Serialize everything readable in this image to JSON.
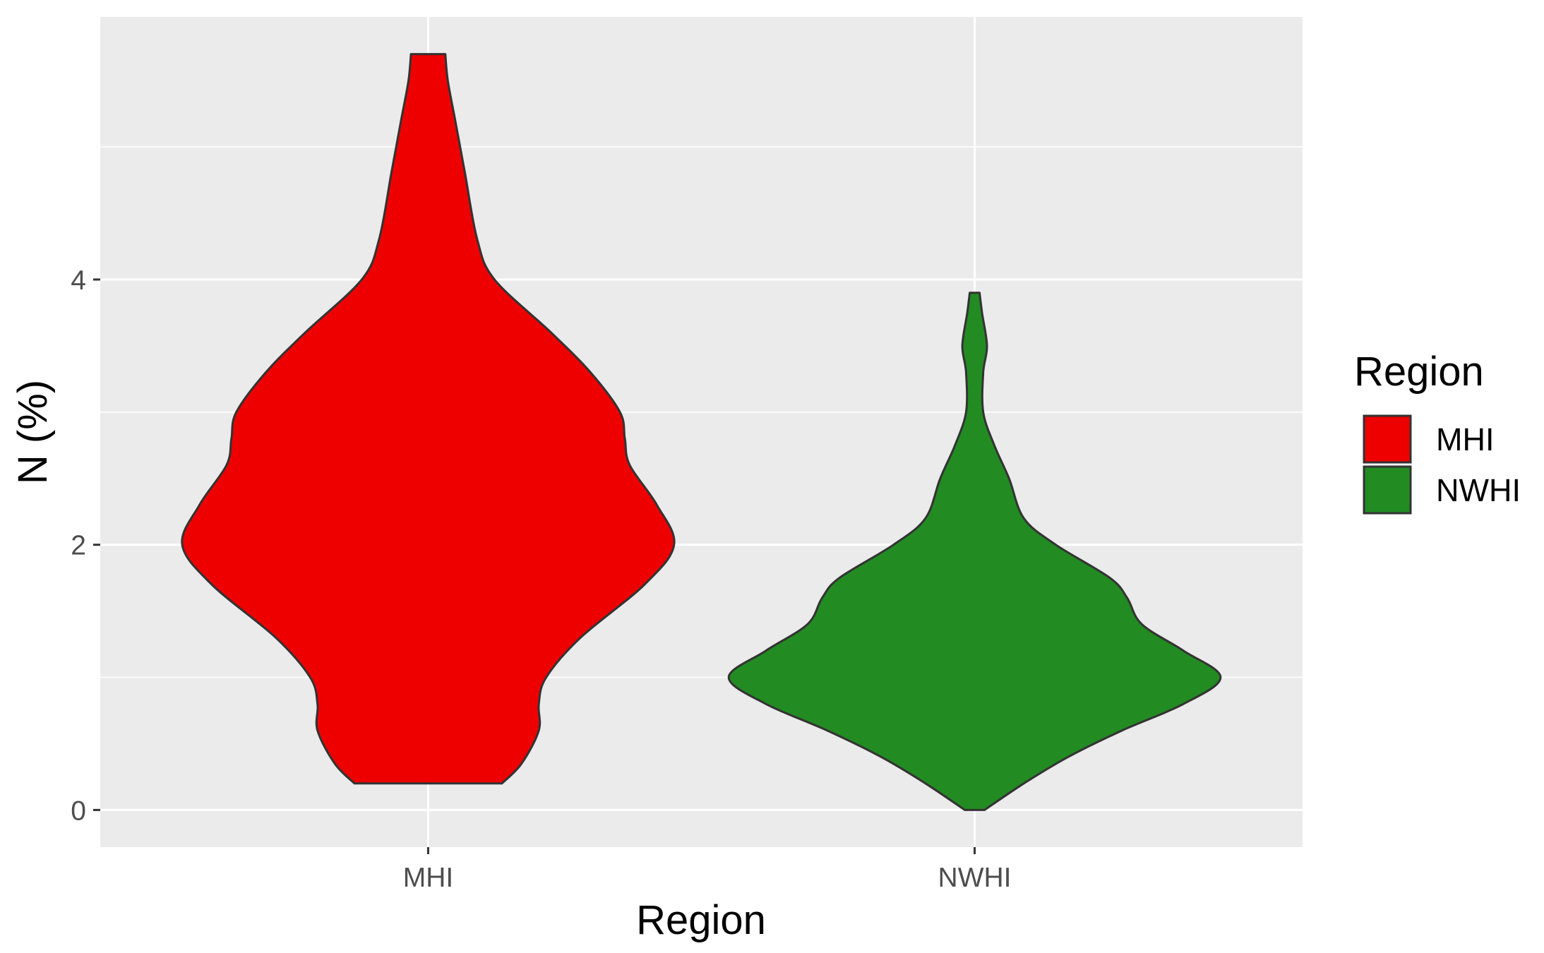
{
  "chart_data": {
    "type": "violin",
    "xlabel": "Region",
    "ylabel": "N (%)",
    "categories": [
      "MHI",
      "NWHI"
    ],
    "y_ticks": [
      0,
      2,
      4
    ],
    "ylim": [
      -0.28,
      5.98
    ],
    "grid": true,
    "legend": {
      "title": "Region",
      "position": "right",
      "entries": [
        {
          "label": "MHI",
          "color": "#ee0000"
        },
        {
          "label": "NWHI",
          "color": "#228b22"
        }
      ]
    },
    "series": [
      {
        "name": "MHI",
        "color": "#ee0000",
        "y_min": 0.2,
        "y_max": 5.7,
        "density_profile": [
          [
            0.2,
            0.3
          ],
          [
            0.35,
            0.38
          ],
          [
            0.6,
            0.45
          ],
          [
            0.8,
            0.45
          ],
          [
            1.0,
            0.48
          ],
          [
            1.3,
            0.62
          ],
          [
            1.7,
            0.88
          ],
          [
            2.0,
            1.0
          ],
          [
            2.3,
            0.93
          ],
          [
            2.6,
            0.82
          ],
          [
            2.8,
            0.8
          ],
          [
            3.0,
            0.78
          ],
          [
            3.3,
            0.66
          ],
          [
            3.6,
            0.5
          ],
          [
            4.0,
            0.27
          ],
          [
            4.3,
            0.2
          ],
          [
            4.8,
            0.15
          ],
          [
            5.2,
            0.11
          ],
          [
            5.5,
            0.08
          ],
          [
            5.7,
            0.07
          ]
        ]
      },
      {
        "name": "NWHI",
        "color": "#228b22",
        "y_min": 0.0,
        "y_max": 3.9,
        "density_profile": [
          [
            0.0,
            0.04
          ],
          [
            0.2,
            0.2
          ],
          [
            0.4,
            0.38
          ],
          [
            0.6,
            0.6
          ],
          [
            0.8,
            0.85
          ],
          [
            1.0,
            1.0
          ],
          [
            1.2,
            0.85
          ],
          [
            1.4,
            0.68
          ],
          [
            1.6,
            0.62
          ],
          [
            1.75,
            0.55
          ],
          [
            2.0,
            0.33
          ],
          [
            2.2,
            0.2
          ],
          [
            2.5,
            0.14
          ],
          [
            2.75,
            0.08
          ],
          [
            3.0,
            0.035
          ],
          [
            3.3,
            0.035
          ],
          [
            3.5,
            0.05
          ],
          [
            3.75,
            0.03
          ],
          [
            3.9,
            0.02
          ]
        ]
      }
    ]
  }
}
